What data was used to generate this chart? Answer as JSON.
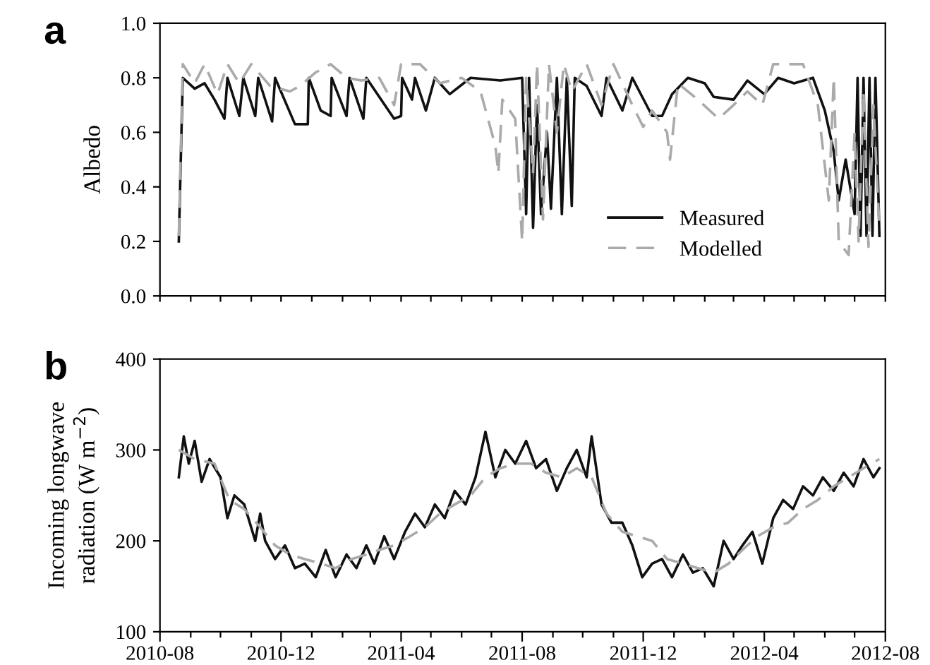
{
  "chart_data": [
    {
      "type": "line",
      "title": "a",
      "ylabel": "Albedo",
      "tick_labels": "y",
      "legend": "bottom right",
      "grid": false,
      "marker": "none",
      "xlim": [
        "2010-08",
        "2012-08"
      ],
      "xticks": [
        {
          "value": "2010-08",
          "label": null
        },
        {
          "value": "2010-09",
          "label": null
        },
        {
          "value": "2010-10",
          "label": null
        },
        {
          "value": "2010-11",
          "label": null
        },
        {
          "value": "2010-12",
          "label": null
        },
        {
          "value": "2011-01",
          "label": null
        },
        {
          "value": "2011-02",
          "label": null
        },
        {
          "value": "2011-03",
          "label": null
        },
        {
          "value": "2011-04",
          "label": null
        },
        {
          "value": "2011-05",
          "label": null
        },
        {
          "value": "2011-06",
          "label": null
        },
        {
          "value": "2011-07",
          "label": null
        },
        {
          "value": "2011-08",
          "label": null
        },
        {
          "value": "2011-09",
          "label": null
        },
        {
          "value": "2011-10",
          "label": null
        },
        {
          "value": "2011-11",
          "label": null
        },
        {
          "value": "2011-12",
          "label": null
        },
        {
          "value": "2012-01",
          "label": null
        },
        {
          "value": "2012-02",
          "label": null
        },
        {
          "value": "2012-03",
          "label": null
        },
        {
          "value": "2012-04",
          "label": null
        },
        {
          "value": "2012-05",
          "label": null
        },
        {
          "value": "2012-06",
          "label": null
        },
        {
          "value": "2012-07",
          "label": null
        },
        {
          "value": "2012-08",
          "label": null
        }
      ],
      "ylim": [
        0,
        1
      ],
      "yticks": [
        {
          "value": 0,
          "label": "0.0"
        },
        {
          "value": 0.2,
          "label": "0.2"
        },
        {
          "value": 0.4,
          "label": "0.4"
        },
        {
          "value": 0.6,
          "label": "0.6"
        },
        {
          "value": 0.8,
          "label": "0.8"
        },
        {
          "value": 1,
          "label": "1.0"
        }
      ],
      "series": [
        {
          "name": "Measured",
          "color": "#111111",
          "line_style": "solid",
          "x": [
            "2010-08-20",
            "2010-08-24",
            "2010-09-05",
            "2010-09-15",
            "2010-09-25",
            "2010-10-05",
            "2010-10-08",
            "2010-10-20",
            "2010-10-24",
            "2010-11-05",
            "2010-11-08",
            "2010-11-22",
            "2010-11-25",
            "2010-12-15",
            "2010-12-28",
            "2010-12-29",
            "2011-01-10",
            "2011-01-20",
            "2011-01-21",
            "2011-02-05",
            "2011-02-08",
            "2011-02-22",
            "2011-02-25",
            "2011-03-10",
            "2011-03-25",
            "2011-04-01",
            "2011-04-02",
            "2011-04-12",
            "2011-04-15",
            "2011-04-26",
            "2011-05-05",
            "2011-05-20",
            "2011-06-10",
            "2011-07-10",
            "2011-08-01",
            "2011-08-05",
            "2011-08-08",
            "2011-08-12",
            "2011-08-16",
            "2011-08-20",
            "2011-08-26",
            "2011-08-30",
            "2011-09-05",
            "2011-09-10",
            "2011-09-15",
            "2011-09-20",
            "2011-09-23",
            "2011-10-05",
            "2011-10-20",
            "2011-10-25",
            "2011-11-10",
            "2011-11-20",
            "2011-12-10",
            "2011-12-20",
            "2011-12-30",
            "2012-01-15",
            "2012-02-01",
            "2012-02-10",
            "2012-03-01",
            "2012-03-15",
            "2012-04-01",
            "2012-04-15",
            "2012-05-01",
            "2012-05-20",
            "2012-06-01",
            "2012-06-10",
            "2012-06-15",
            "2012-06-22",
            "2012-07-01",
            "2012-07-04",
            "2012-07-07",
            "2012-07-10",
            "2012-07-13",
            "2012-07-16",
            "2012-07-19",
            "2012-07-22",
            "2012-07-26"
          ],
          "values": [
            0.2,
            0.8,
            0.76,
            0.78,
            0.72,
            0.65,
            0.8,
            0.66,
            0.8,
            0.66,
            0.8,
            0.64,
            0.8,
            0.63,
            0.63,
            0.8,
            0.68,
            0.66,
            0.8,
            0.66,
            0.8,
            0.65,
            0.8,
            0.73,
            0.65,
            0.66,
            0.8,
            0.72,
            0.8,
            0.68,
            0.8,
            0.74,
            0.8,
            0.79,
            0.8,
            0.3,
            0.8,
            0.25,
            0.7,
            0.3,
            0.6,
            0.32,
            0.8,
            0.3,
            0.8,
            0.33,
            0.8,
            0.77,
            0.66,
            0.8,
            0.68,
            0.8,
            0.66,
            0.66,
            0.74,
            0.8,
            0.78,
            0.73,
            0.72,
            0.79,
            0.74,
            0.8,
            0.78,
            0.8,
            0.68,
            0.53,
            0.35,
            0.5,
            0.3,
            0.8,
            0.22,
            0.8,
            0.22,
            0.8,
            0.22,
            0.8,
            0.22
          ]
        },
        {
          "name": "Modelled",
          "color": "#aaaaaa",
          "line_style": "dashed",
          "x": [
            "2010-08-20",
            "2010-08-24",
            "2010-09-05",
            "2010-09-15",
            "2010-09-28",
            "2010-10-08",
            "2010-10-20",
            "2010-11-01",
            "2010-11-20",
            "2010-12-10",
            "2010-12-20",
            "2011-01-05",
            "2011-01-20",
            "2011-02-05",
            "2011-02-20",
            "2011-03-10",
            "2011-03-25",
            "2011-04-01",
            "2011-04-20",
            "2011-05-10",
            "2011-06-01",
            "2011-06-20",
            "2011-07-05",
            "2011-07-08",
            "2011-07-12",
            "2011-07-25",
            "2011-08-01",
            "2011-08-05",
            "2011-08-12",
            "2011-08-16",
            "2011-08-22",
            "2011-08-28",
            "2011-09-05",
            "2011-09-12",
            "2011-09-20",
            "2011-10-05",
            "2011-10-20",
            "2011-11-01",
            "2011-11-20",
            "2011-12-01",
            "2011-12-10",
            "2011-12-25",
            "2011-12-28",
            "2012-01-05",
            "2012-01-25",
            "2012-02-15",
            "2012-03-01",
            "2012-03-15",
            "2012-03-30",
            "2012-04-10",
            "2012-05-10",
            "2012-05-25",
            "2012-06-05",
            "2012-06-10",
            "2012-06-15",
            "2012-06-25",
            "2012-07-01",
            "2012-07-05",
            "2012-07-10",
            "2012-07-15",
            "2012-07-20",
            "2012-07-26"
          ],
          "values": [
            0.22,
            0.85,
            0.78,
            0.85,
            0.74,
            0.85,
            0.78,
            0.85,
            0.77,
            0.75,
            0.77,
            0.82,
            0.85,
            0.8,
            0.79,
            0.8,
            0.7,
            0.85,
            0.85,
            0.78,
            0.8,
            0.75,
            0.55,
            0.45,
            0.72,
            0.65,
            0.2,
            0.8,
            0.45,
            0.85,
            0.28,
            0.85,
            0.6,
            0.85,
            0.75,
            0.85,
            0.7,
            0.85,
            0.7,
            0.62,
            0.68,
            0.6,
            0.5,
            0.78,
            0.72,
            0.65,
            0.7,
            0.75,
            0.7,
            0.85,
            0.85,
            0.7,
            0.35,
            0.8,
            0.2,
            0.15,
            0.6,
            0.2,
            0.75,
            0.18,
            0.7,
            0.25
          ]
        }
      ]
    },
    {
      "type": "line",
      "title": "b",
      "ylabel": "Incoming longwave\nradiation (W m$^{−2}$)",
      "grid": false,
      "marker": "none",
      "xlim": [
        "2010-08",
        "2012-08"
      ],
      "xticks": [
        {
          "value": "2010-08",
          "label": "2010-08"
        },
        {
          "value": "2010-09",
          "label": null
        },
        {
          "value": "2010-10",
          "label": null
        },
        {
          "value": "2010-11",
          "label": null
        },
        {
          "value": "2010-12",
          "label": "2010-12"
        },
        {
          "value": "2011-01",
          "label": null
        },
        {
          "value": "2011-02",
          "label": null
        },
        {
          "value": "2011-03",
          "label": null
        },
        {
          "value": "2011-04",
          "label": "2011-04"
        },
        {
          "value": "2011-05",
          "label": null
        },
        {
          "value": "2011-06",
          "label": null
        },
        {
          "value": "2011-07",
          "label": null
        },
        {
          "value": "2011-08",
          "label": "2011-08"
        },
        {
          "value": "2011-09",
          "label": null
        },
        {
          "value": "2011-10",
          "label": null
        },
        {
          "value": "2011-11",
          "label": null
        },
        {
          "value": "2011-12",
          "label": "2011-12"
        },
        {
          "value": "2012-01",
          "label": null
        },
        {
          "value": "2012-02",
          "label": null
        },
        {
          "value": "2012-03",
          "label": null
        },
        {
          "value": "2012-04",
          "label": "2012-04"
        },
        {
          "value": "2012-05",
          "label": null
        },
        {
          "value": "2012-06",
          "label": null
        },
        {
          "value": "2012-07",
          "label": null
        },
        {
          "value": "2012-08",
          "label": "2012-08"
        }
      ],
      "ylim": [
        100,
        400
      ],
      "yticks": [
        100,
        200,
        300,
        400
      ],
      "series": [
        {
          "color": "#111111",
          "line_style": "solid",
          "x": [
            "2010-08-20",
            "2010-08-25",
            "2010-08-30",
            "2010-09-05",
            "2010-09-12",
            "2010-09-20",
            "2010-10-01",
            "2010-10-08",
            "2010-10-15",
            "2010-10-25",
            "2010-11-05",
            "2010-11-10",
            "2010-11-15",
            "2010-11-25",
            "2010-12-05",
            "2010-12-15",
            "2010-12-25",
            "2011-01-05",
            "2011-01-15",
            "2011-01-25",
            "2011-02-05",
            "2011-02-15",
            "2011-02-25",
            "2011-03-05",
            "2011-03-15",
            "2011-03-25",
            "2011-04-05",
            "2011-04-15",
            "2011-04-25",
            "2011-05-05",
            "2011-05-15",
            "2011-05-25",
            "2011-06-05",
            "2011-06-15",
            "2011-06-25",
            "2011-07-05",
            "2011-07-15",
            "2011-07-25",
            "2011-08-05",
            "2011-08-15",
            "2011-08-25",
            "2011-09-05",
            "2011-09-15",
            "2011-09-25",
            "2011-10-05",
            "2011-10-10",
            "2011-10-20",
            "2011-10-30",
            "2011-11-10",
            "2011-11-20",
            "2011-11-30",
            "2011-12-10",
            "2011-12-20",
            "2011-12-30",
            "2012-01-10",
            "2012-01-20",
            "2012-01-30",
            "2012-02-10",
            "2012-02-20",
            "2012-03-01",
            "2012-03-10",
            "2012-03-20",
            "2012-03-30",
            "2012-04-10",
            "2012-04-20",
            "2012-04-30",
            "2012-05-10",
            "2012-05-20",
            "2012-05-30",
            "2012-06-10",
            "2012-06-20",
            "2012-06-30",
            "2012-07-10",
            "2012-07-20",
            "2012-07-26"
          ],
          "values": [
            270,
            315,
            285,
            310,
            265,
            290,
            270,
            225,
            250,
            240,
            200,
            230,
            200,
            180,
            195,
            170,
            175,
            160,
            190,
            160,
            185,
            170,
            195,
            175,
            205,
            180,
            210,
            230,
            215,
            240,
            225,
            255,
            240,
            270,
            320,
            270,
            300,
            285,
            310,
            280,
            290,
            255,
            280,
            300,
            270,
            315,
            240,
            220,
            220,
            195,
            160,
            175,
            180,
            160,
            185,
            165,
            170,
            150,
            200,
            180,
            195,
            210,
            175,
            225,
            245,
            235,
            260,
            250,
            270,
            255,
            275,
            260,
            290,
            270,
            280
          ]
        },
        {
          "color": "#aaaaaa",
          "line_style": "dashed",
          "x": [
            "2010-08-20",
            "2010-09-05",
            "2010-09-25",
            "2010-10-10",
            "2010-10-25",
            "2010-11-10",
            "2010-11-25",
            "2010-12-10",
            "2010-12-25",
            "2011-01-10",
            "2011-01-25",
            "2011-02-10",
            "2011-02-25",
            "2011-03-10",
            "2011-03-25",
            "2011-04-10",
            "2011-04-25",
            "2011-05-10",
            "2011-05-25",
            "2011-06-10",
            "2011-06-25",
            "2011-07-10",
            "2011-07-25",
            "2011-08-10",
            "2011-08-25",
            "2011-09-10",
            "2011-09-25",
            "2011-10-10",
            "2011-10-25",
            "2011-11-10",
            "2011-11-25",
            "2011-12-10",
            "2011-12-25",
            "2012-01-10",
            "2012-01-25",
            "2012-02-10",
            "2012-02-25",
            "2012-03-10",
            "2012-03-25",
            "2012-04-10",
            "2012-04-25",
            "2012-05-10",
            "2012-05-25",
            "2012-06-10",
            "2012-06-25",
            "2012-07-10",
            "2012-07-26"
          ],
          "values": [
            300,
            290,
            285,
            245,
            235,
            215,
            195,
            185,
            180,
            175,
            170,
            180,
            185,
            190,
            195,
            205,
            215,
            230,
            240,
            250,
            270,
            280,
            285,
            285,
            275,
            270,
            280,
            270,
            230,
            210,
            205,
            200,
            180,
            175,
            170,
            165,
            175,
            190,
            205,
            215,
            220,
            235,
            245,
            260,
            270,
            280,
            290
          ]
        }
      ]
    }
  ]
}
